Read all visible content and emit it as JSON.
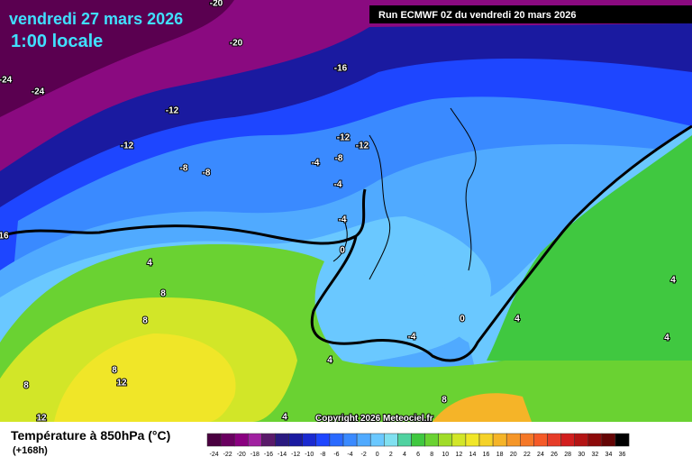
{
  "header": {
    "title": "vendredi 27 mars 2026",
    "subtitle": "1:00 locale",
    "run": "Run ECMWF 0Z du vendredi 20 mars 2026"
  },
  "contour_labels": [
    "-20",
    "-20",
    "-16",
    "-24",
    "-24",
    "-12",
    "-12",
    "-8",
    "-8",
    "-12",
    "-12",
    "-4",
    "-8",
    "-4",
    "-4",
    "0",
    "16",
    "4",
    "8",
    "8",
    "8",
    "8",
    "12",
    "12",
    "4",
    "4",
    "8",
    "0",
    "-4",
    "4",
    "4",
    "4"
  ],
  "copyright": "Copyright 2026 Meteociel.fr",
  "legend": {
    "title": "Température à 850hPa (°C)",
    "lead_time": "(+168h)",
    "labels": [
      "-24",
      "-22",
      "-20",
      "-18",
      "-16",
      "-14",
      "-12",
      "-10",
      "-8",
      "-6",
      "-4",
      "-2",
      "0",
      "2",
      "4",
      "6",
      "8",
      "10",
      "12",
      "14",
      "16",
      "18",
      "20",
      "22",
      "24",
      "26",
      "28",
      "30",
      "32",
      "34",
      "36"
    ],
    "colors": [
      "#4a0040",
      "#6a0060",
      "#8a0080",
      "#a020a0",
      "#5a1a6a",
      "#2a1a80",
      "#1a1aa0",
      "#1a2ad0",
      "#1e46ff",
      "#2a6aff",
      "#3a8aff",
      "#50aaff",
      "#6ac8ff",
      "#80e0f0",
      "#50d2a0",
      "#40c840",
      "#6ad232",
      "#a0dc28",
      "#d2e628",
      "#f0e628",
      "#f5d228",
      "#f5b428",
      "#f59628",
      "#f57828",
      "#f55a28",
      "#e63c28",
      "#d21e1e",
      "#b41414",
      "#8c0a0a",
      "#640505",
      "#000000"
    ]
  }
}
